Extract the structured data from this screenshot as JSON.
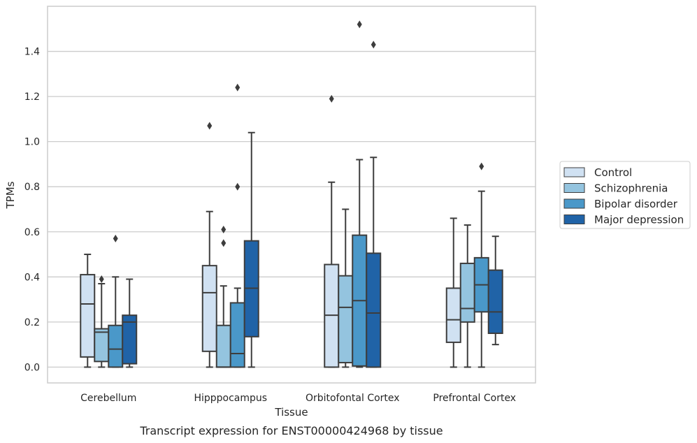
{
  "caption": "Transcript expression for ENST00000424968 by tissue",
  "chart_data": {
    "type": "boxplot",
    "xlabel": "Tissue",
    "ylabel": "TPMs",
    "ylim": [
      -0.07,
      1.6
    ],
    "yticks": [
      0.0,
      0.2,
      0.4,
      0.6,
      0.8,
      1.0,
      1.2,
      1.4
    ],
    "ytick_labels": [
      "0.0",
      "0.2",
      "0.4",
      "0.6",
      "0.8",
      "1.0",
      "1.2",
      "1.4"
    ],
    "grid": "horizontal",
    "legend_position": "right",
    "categories": [
      "Cerebellum",
      "Hipppocampus",
      "Orbitofontal Cortex",
      "Prefrontal Cortex"
    ],
    "series": [
      {
        "name": "Control",
        "color": "#d0e1f2",
        "boxes": [
          {
            "whisker_low": 0.0,
            "q1": 0.045,
            "median": 0.28,
            "q3": 0.41,
            "whisker_high": 0.5,
            "outliers": []
          },
          {
            "whisker_low": 0.0,
            "q1": 0.07,
            "median": 0.33,
            "q3": 0.45,
            "whisker_high": 0.69,
            "outliers": [
              1.07
            ]
          },
          {
            "whisker_low": 0.0,
            "q1": 0.0,
            "median": 0.23,
            "q3": 0.455,
            "whisker_high": 0.82,
            "outliers": [
              1.19
            ]
          },
          {
            "whisker_low": 0.0,
            "q1": 0.11,
            "median": 0.21,
            "q3": 0.35,
            "whisker_high": 0.66,
            "outliers": []
          }
        ]
      },
      {
        "name": "Schizophrenia",
        "color": "#94c4df",
        "boxes": [
          {
            "whisker_low": 0.0,
            "q1": 0.025,
            "median": 0.155,
            "q3": 0.17,
            "whisker_high": 0.37,
            "outliers": [
              0.39
            ]
          },
          {
            "whisker_low": 0.0,
            "q1": 0.0,
            "median": 0.0,
            "q3": 0.185,
            "whisker_high": 0.36,
            "outliers": [
              0.55,
              0.61
            ]
          },
          {
            "whisker_low": 0.0,
            "q1": 0.02,
            "median": 0.265,
            "q3": 0.405,
            "whisker_high": 0.7,
            "outliers": []
          },
          {
            "whisker_low": 0.0,
            "q1": 0.2,
            "median": 0.26,
            "q3": 0.46,
            "whisker_high": 0.63,
            "outliers": []
          }
        ]
      },
      {
        "name": "Bipolar disorder",
        "color": "#4a98c9",
        "boxes": [
          {
            "whisker_low": 0.0,
            "q1": 0.0,
            "median": 0.08,
            "q3": 0.185,
            "whisker_high": 0.4,
            "outliers": [
              0.57
            ]
          },
          {
            "whisker_low": 0.0,
            "q1": 0.0,
            "median": 0.06,
            "q3": 0.285,
            "whisker_high": 0.35,
            "outliers": [
              0.8,
              1.24
            ]
          },
          {
            "whisker_low": 0.0,
            "q1": 0.005,
            "median": 0.295,
            "q3": 0.585,
            "whisker_high": 0.92,
            "outliers": [
              1.52
            ]
          },
          {
            "whisker_low": 0.0,
            "q1": 0.245,
            "median": 0.365,
            "q3": 0.485,
            "whisker_high": 0.78,
            "outliers": [
              0.89
            ]
          }
        ]
      },
      {
        "name": "Major depression",
        "color": "#2063a7",
        "boxes": [
          {
            "whisker_low": 0.0,
            "q1": 0.015,
            "median": 0.2,
            "q3": 0.23,
            "whisker_high": 0.39,
            "outliers": []
          },
          {
            "whisker_low": 0.0,
            "q1": 0.135,
            "median": 0.35,
            "q3": 0.56,
            "whisker_high": 1.04,
            "outliers": []
          },
          {
            "whisker_low": 0.0,
            "q1": 0.0,
            "median": 0.24,
            "q3": 0.505,
            "whisker_high": 0.93,
            "outliers": [
              1.43
            ]
          },
          {
            "whisker_low": 0.1,
            "q1": 0.15,
            "median": 0.245,
            "q3": 0.43,
            "whisker_high": 0.58,
            "outliers": []
          }
        ]
      }
    ]
  }
}
